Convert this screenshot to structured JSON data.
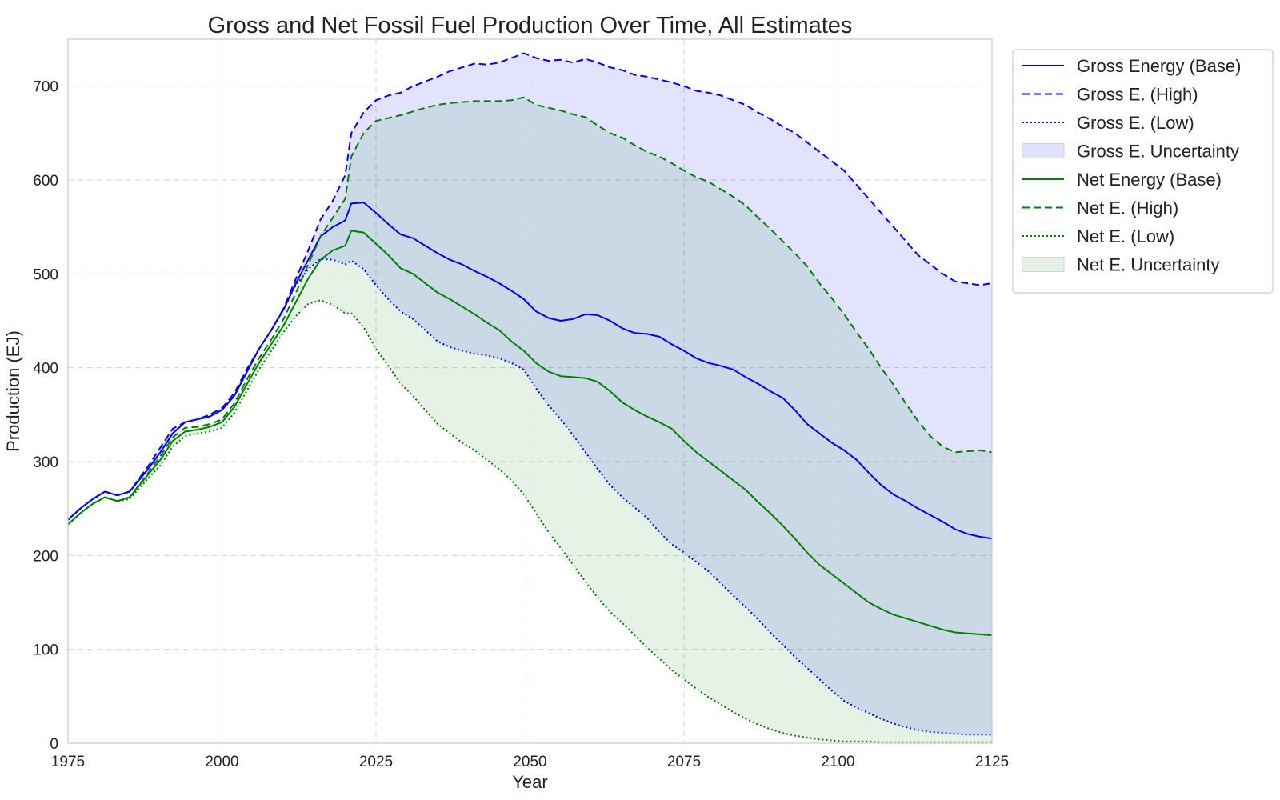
{
  "chart_data": {
    "type": "line",
    "title": "Gross and Net Fossil Fuel Production Over Time, All Estimates",
    "xlabel": "Year",
    "ylabel": "Production (EJ)",
    "xlim": [
      1975,
      2125
    ],
    "ylim": [
      0,
      750
    ],
    "xticks": [
      1975,
      2000,
      2025,
      2050,
      2075,
      2100,
      2125
    ],
    "yticks": [
      0,
      100,
      200,
      300,
      400,
      500,
      600,
      700
    ],
    "grid": true,
    "legend_position": "outside-top-right",
    "colors": {
      "gross": "#0000ff",
      "net": "#008000",
      "gross_fill": "#e2e2ff",
      "overlap_fill": "#cdd8e4",
      "net_fill": "#e5f1e5"
    },
    "series": [
      {
        "name": "Gross Energy (Base)",
        "style": "solid",
        "color": "#0000ff",
        "x": [
          1975,
          1977,
          1979,
          1981,
          1983,
          1985,
          1988,
          1990,
          1992,
          1994,
          1996,
          1998,
          2000,
          2002,
          2004,
          2006,
          2008,
          2010,
          2012,
          2014,
          2016,
          2018,
          2020,
          2021,
          2023,
          2025,
          2027,
          2029,
          2031,
          2033,
          2035,
          2037,
          2039,
          2041,
          2043,
          2045,
          2047,
          2049,
          2051,
          2053,
          2055,
          2057,
          2059,
          2061,
          2063,
          2065,
          2067,
          2069,
          2071,
          2073,
          2075,
          2077,
          2079,
          2081,
          2083,
          2085,
          2087,
          2089,
          2091,
          2093,
          2095,
          2097,
          2099,
          2101,
          2103,
          2105,
          2107,
          2109,
          2111,
          2113,
          2115,
          2117,
          2119,
          2121,
          2123,
          2125
        ],
        "y": [
          238,
          250,
          260,
          268,
          264,
          268,
          292,
          310,
          330,
          342,
          345,
          348,
          355,
          370,
          395,
          420,
          440,
          462,
          490,
          515,
          540,
          550,
          557,
          575,
          576,
          565,
          553,
          542,
          538,
          530,
          522,
          515,
          510,
          503,
          497,
          490,
          482,
          473,
          460,
          453,
          450,
          452,
          457,
          456,
          450,
          442,
          437,
          436,
          433,
          425,
          418,
          410,
          405,
          402,
          398,
          390,
          383,
          375,
          368,
          355,
          340,
          330,
          320,
          312,
          302,
          288,
          275,
          265,
          258,
          250,
          243,
          236,
          228,
          223,
          220,
          218
        ]
      },
      {
        "name": "Gross E. (High)",
        "style": "dashed",
        "color": "#0000ff",
        "x": [
          1975,
          1977,
          1979,
          1981,
          1983,
          1985,
          1988,
          1990,
          1992,
          1994,
          1996,
          1998,
          2000,
          2002,
          2004,
          2006,
          2008,
          2010,
          2012,
          2014,
          2016,
          2018,
          2020,
          2021,
          2023,
          2025,
          2027,
          2029,
          2031,
          2033,
          2035,
          2037,
          2039,
          2041,
          2043,
          2045,
          2047,
          2049,
          2051,
          2053,
          2055,
          2057,
          2059,
          2061,
          2063,
          2065,
          2067,
          2069,
          2071,
          2073,
          2075,
          2077,
          2079,
          2081,
          2083,
          2085,
          2087,
          2089,
          2091,
          2093,
          2095,
          2097,
          2099,
          2101,
          2103,
          2105,
          2107,
          2109,
          2111,
          2113,
          2115,
          2117,
          2119,
          2121,
          2123,
          2125
        ],
        "y": [
          238,
          250,
          260,
          268,
          264,
          268,
          295,
          315,
          335,
          342,
          345,
          350,
          357,
          373,
          398,
          420,
          440,
          463,
          495,
          525,
          558,
          578,
          605,
          650,
          672,
          685,
          690,
          693,
          700,
          705,
          710,
          716,
          720,
          724,
          723,
          725,
          730,
          735,
          730,
          727,
          728,
          725,
          729,
          725,
          720,
          717,
          712,
          710,
          707,
          704,
          700,
          695,
          693,
          690,
          685,
          680,
          672,
          665,
          657,
          650,
          640,
          630,
          620,
          610,
          595,
          580,
          565,
          550,
          535,
          520,
          510,
          500,
          492,
          490,
          488,
          490
        ]
      },
      {
        "name": "Gross E. (Low)",
        "style": "dotted",
        "color": "#0000ff",
        "x": [
          1975,
          1977,
          1979,
          1981,
          1983,
          1985,
          1988,
          1990,
          1992,
          1994,
          1996,
          1998,
          2000,
          2002,
          2004,
          2006,
          2008,
          2010,
          2012,
          2014,
          2016,
          2018,
          2020,
          2021,
          2023,
          2025,
          2027,
          2029,
          2031,
          2033,
          2035,
          2037,
          2039,
          2041,
          2043,
          2045,
          2047,
          2049,
          2051,
          2053,
          2055,
          2057,
          2059,
          2061,
          2063,
          2065,
          2067,
          2069,
          2071,
          2073,
          2075,
          2077,
          2079,
          2081,
          2083,
          2085,
          2087,
          2089,
          2091,
          2093,
          2095,
          2097,
          2099,
          2101,
          2103,
          2105,
          2107,
          2109,
          2111,
          2113,
          2115,
          2117,
          2119,
          2121,
          2123,
          2125
        ],
        "y": [
          238,
          250,
          260,
          268,
          264,
          268,
          292,
          310,
          330,
          342,
          345,
          348,
          355,
          370,
          395,
          420,
          440,
          462,
          488,
          505,
          516,
          515,
          510,
          514,
          505,
          488,
          473,
          460,
          452,
          440,
          428,
          422,
          418,
          415,
          413,
          410,
          405,
          398,
          378,
          360,
          345,
          328,
          310,
          292,
          275,
          262,
          251,
          240,
          225,
          212,
          203,
          193,
          183,
          170,
          157,
          145,
          132,
          118,
          105,
          92,
          80,
          68,
          56,
          45,
          38,
          32,
          26,
          21,
          17,
          14,
          12,
          11,
          10,
          9,
          9,
          9
        ]
      },
      {
        "name": "Net Energy (Base)",
        "style": "solid",
        "color": "#008000",
        "x": [
          1975,
          1977,
          1979,
          1981,
          1983,
          1985,
          1988,
          1990,
          1992,
          1994,
          1996,
          1998,
          2000,
          2002,
          2004,
          2006,
          2008,
          2010,
          2012,
          2014,
          2016,
          2018,
          2020,
          2021,
          2023,
          2025,
          2027,
          2029,
          2031,
          2033,
          2035,
          2037,
          2039,
          2041,
          2043,
          2045,
          2047,
          2049,
          2051,
          2053,
          2055,
          2057,
          2059,
          2061,
          2063,
          2065,
          2067,
          2069,
          2071,
          2073,
          2075,
          2077,
          2079,
          2081,
          2083,
          2085,
          2087,
          2089,
          2091,
          2093,
          2095,
          2097,
          2099,
          2101,
          2103,
          2105,
          2107,
          2109,
          2111,
          2113,
          2115,
          2117,
          2119,
          2121,
          2123,
          2125
        ],
        "y": [
          233,
          245,
          255,
          262,
          258,
          262,
          286,
          302,
          322,
          332,
          334,
          337,
          342,
          358,
          382,
          405,
          425,
          445,
          470,
          495,
          515,
          525,
          530,
          546,
          544,
          532,
          520,
          506,
          500,
          490,
          480,
          473,
          465,
          457,
          448,
          440,
          428,
          418,
          405,
          396,
          391,
          390,
          389,
          385,
          375,
          363,
          355,
          348,
          342,
          335,
          322,
          310,
          300,
          290,
          280,
          270,
          257,
          245,
          232,
          218,
          203,
          190,
          180,
          170,
          160,
          150,
          143,
          137,
          133,
          129,
          125,
          121,
          118,
          117,
          116,
          115
        ]
      },
      {
        "name": "Net E. (High)",
        "style": "dashed",
        "color": "#008000",
        "x": [
          1975,
          1977,
          1979,
          1981,
          1983,
          1985,
          1988,
          1990,
          1992,
          1994,
          1996,
          1998,
          2000,
          2002,
          2004,
          2006,
          2008,
          2010,
          2012,
          2014,
          2016,
          2018,
          2020,
          2021,
          2023,
          2025,
          2027,
          2029,
          2031,
          2033,
          2035,
          2037,
          2039,
          2041,
          2043,
          2045,
          2047,
          2049,
          2051,
          2053,
          2055,
          2057,
          2059,
          2061,
          2063,
          2065,
          2067,
          2069,
          2071,
          2073,
          2075,
          2077,
          2079,
          2081,
          2083,
          2085,
          2087,
          2089,
          2091,
          2093,
          2095,
          2097,
          2099,
          2101,
          2103,
          2105,
          2107,
          2109,
          2111,
          2113,
          2115,
          2117,
          2119,
          2121,
          2123,
          2125
        ],
        "y": [
          233,
          245,
          255,
          262,
          258,
          262,
          288,
          306,
          326,
          336,
          337,
          340,
          345,
          362,
          387,
          410,
          430,
          452,
          480,
          510,
          540,
          560,
          580,
          625,
          650,
          663,
          666,
          669,
          673,
          677,
          680,
          682,
          683,
          684,
          684,
          684,
          685,
          688,
          680,
          677,
          674,
          670,
          667,
          658,
          650,
          645,
          637,
          630,
          625,
          618,
          610,
          603,
          598,
          590,
          582,
          573,
          560,
          548,
          535,
          522,
          508,
          490,
          474,
          457,
          438,
          420,
          400,
          382,
          362,
          343,
          327,
          316,
          310,
          311,
          312,
          310
        ]
      },
      {
        "name": "Net E. (Low)",
        "style": "dotted",
        "color": "#008000",
        "x": [
          1975,
          1977,
          1979,
          1981,
          1983,
          1985,
          1988,
          1990,
          1992,
          1994,
          1996,
          1998,
          2000,
          2002,
          2004,
          2006,
          2008,
          2010,
          2012,
          2014,
          2016,
          2018,
          2020,
          2021,
          2023,
          2025,
          2027,
          2029,
          2031,
          2033,
          2035,
          2037,
          2039,
          2041,
          2043,
          2045,
          2047,
          2049,
          2051,
          2053,
          2055,
          2057,
          2059,
          2061,
          2063,
          2065,
          2067,
          2069,
          2071,
          2073,
          2075,
          2077,
          2079,
          2081,
          2083,
          2085,
          2087,
          2089,
          2091,
          2093,
          2095,
          2097,
          2099,
          2101,
          2103,
          2105,
          2107,
          2109,
          2111,
          2113,
          2115,
          2117,
          2119,
          2121,
          2123,
          2125
        ],
        "y": [
          233,
          245,
          255,
          262,
          258,
          260,
          282,
          296,
          316,
          327,
          330,
          332,
          336,
          352,
          375,
          398,
          418,
          438,
          455,
          468,
          472,
          467,
          458,
          458,
          443,
          420,
          402,
          383,
          370,
          355,
          340,
          330,
          320,
          312,
          302,
          292,
          280,
          265,
          245,
          225,
          208,
          190,
          172,
          155,
          140,
          128,
          115,
          102,
          90,
          78,
          68,
          58,
          49,
          41,
          33,
          26,
          20,
          15,
          11,
          8,
          6,
          4,
          3,
          2,
          2,
          2,
          1,
          1,
          1,
          1,
          1,
          1,
          1,
          1,
          1,
          1
        ]
      }
    ],
    "legend": [
      {
        "label": "Gross Energy (Base)",
        "kind": "line",
        "style": "solid",
        "color": "#0000ff"
      },
      {
        "label": "Gross E. (High)",
        "kind": "line",
        "style": "dashed",
        "color": "#0000ff"
      },
      {
        "label": "Gross E. (Low)",
        "kind": "line",
        "style": "dotted",
        "color": "#0000ff"
      },
      {
        "label": "Gross E. Uncertainty",
        "kind": "patch",
        "color": "#e2e2ff"
      },
      {
        "label": "Net Energy (Base)",
        "kind": "line",
        "style": "solid",
        "color": "#008000"
      },
      {
        "label": "Net E. (High)",
        "kind": "line",
        "style": "dashed",
        "color": "#008000"
      },
      {
        "label": "Net E. (Low)",
        "kind": "line",
        "style": "dotted",
        "color": "#008000"
      },
      {
        "label": "Net E. Uncertainty",
        "kind": "patch",
        "color": "#e5f1e5"
      }
    ]
  }
}
